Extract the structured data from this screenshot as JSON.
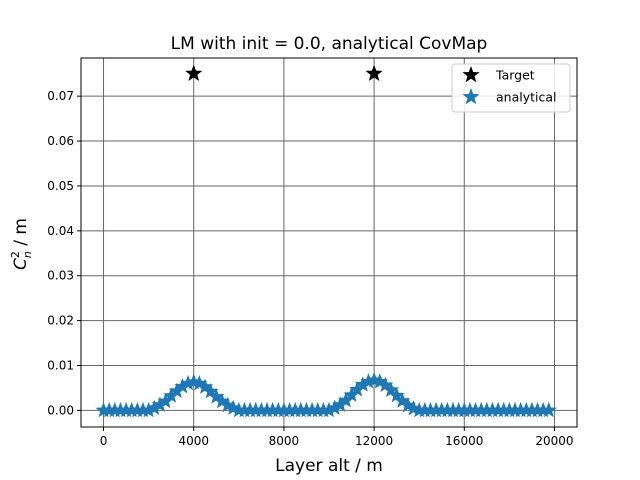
{
  "chart_data": {
    "type": "scatter",
    "title": "LM with init = 0.0, analytical CovMap",
    "xlabel": "Layer alt / m",
    "ylabel_main": "C",
    "ylabel_sup": "2",
    "ylabel_sub": "n",
    "ylabel_rest": " / m",
    "xlim": [
      -1000,
      21000
    ],
    "ylim": [
      -0.0037,
      0.0785
    ],
    "xticks": [
      0,
      4000,
      8000,
      12000,
      16000,
      20000
    ],
    "yticks": [
      0.0,
      0.01,
      0.02,
      0.03,
      0.04,
      0.05,
      0.06,
      0.07
    ],
    "ytick_labels": [
      "0.00",
      "0.01",
      "0.02",
      "0.03",
      "0.04",
      "0.05",
      "0.06",
      "0.07"
    ],
    "grid": true,
    "legend_position": "top-right",
    "series": [
      {
        "name": "Target",
        "color": "#000000",
        "marker": "star",
        "x": [
          4000,
          12000
        ],
        "y": [
          0.075,
          0.075
        ]
      },
      {
        "name": "analytical",
        "color": "#1f77b4",
        "marker": "star",
        "x": [
          0,
          250,
          500,
          750,
          1000,
          1250,
          1500,
          1750,
          2000,
          2250,
          2500,
          2750,
          3000,
          3250,
          3500,
          3750,
          4000,
          4250,
          4500,
          4750,
          5000,
          5250,
          5500,
          5750,
          6000,
          6250,
          6500,
          6750,
          7000,
          7250,
          7500,
          7750,
          8000,
          8250,
          8500,
          8750,
          9000,
          9250,
          9500,
          9750,
          10000,
          10250,
          10500,
          10750,
          11000,
          11250,
          11500,
          11750,
          12000,
          12250,
          12500,
          12750,
          13000,
          13250,
          13500,
          13750,
          14000,
          14250,
          14500,
          14750,
          15000,
          15250,
          15500,
          15750,
          16000,
          16250,
          16500,
          16750,
          17000,
          17250,
          17500,
          17750,
          18000,
          18250,
          18500,
          18750,
          19000,
          19250,
          19500,
          19750
        ],
        "y": [
          0.0,
          0.0,
          0.0,
          0.0,
          0.0,
          0.0,
          0.0,
          0.0,
          0.0,
          0.0005,
          0.0012,
          0.002,
          0.0032,
          0.0043,
          0.0053,
          0.006,
          0.0063,
          0.006,
          0.0052,
          0.0042,
          0.003,
          0.002,
          0.0011,
          0.0005,
          0.0,
          0.0,
          0.0,
          0.0,
          0.0,
          0.0,
          0.0,
          0.0,
          0.0,
          0.0,
          0.0,
          0.0,
          0.0,
          0.0,
          0.0,
          0.0,
          0.0,
          0.0005,
          0.0012,
          0.0022,
          0.0034,
          0.0046,
          0.0057,
          0.0064,
          0.0067,
          0.0064,
          0.0056,
          0.0045,
          0.0033,
          0.0021,
          0.0011,
          0.0004,
          0.0,
          0.0,
          0.0,
          0.0,
          0.0,
          0.0,
          0.0,
          0.0,
          0.0,
          0.0,
          0.0,
          0.0,
          0.0,
          0.0,
          0.0,
          0.0,
          0.0,
          0.0,
          0.0,
          0.0,
          0.0,
          0.0,
          0.0,
          0.0
        ]
      }
    ]
  }
}
